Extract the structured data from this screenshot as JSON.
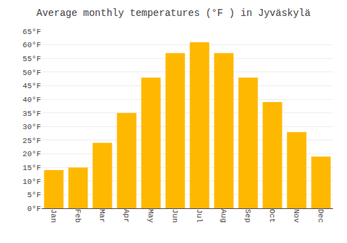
{
  "chart_data": {
    "type": "bar",
    "title": "Average monthly temperatures (°F ) in Jyväskylä",
    "categories": [
      "Jan",
      "Feb",
      "Mar",
      "Apr",
      "May",
      "Jun",
      "Jul",
      "Aug",
      "Sep",
      "Oct",
      "Nov",
      "Dec"
    ],
    "values": [
      14,
      15,
      24,
      35,
      48,
      57,
      61,
      57,
      48,
      39,
      28,
      19
    ],
    "color": "#FFB800",
    "ylim": [
      0,
      65
    ],
    "yticks": [
      {
        "value": 0,
        "label": "0°F"
      },
      {
        "value": 5,
        "label": "5°F"
      },
      {
        "value": 10,
        "label": "10°F"
      },
      {
        "value": 15,
        "label": "15°F"
      },
      {
        "value": 20,
        "label": "20°F"
      },
      {
        "value": 25,
        "label": "25°F"
      },
      {
        "value": 30,
        "label": "30°F"
      },
      {
        "value": 35,
        "label": "35°F"
      },
      {
        "value": 40,
        "label": "40°F"
      },
      {
        "value": 45,
        "label": "45°F"
      },
      {
        "value": 50,
        "label": "50°F"
      },
      {
        "value": 55,
        "label": "55°F"
      },
      {
        "value": 60,
        "label": "60°F"
      },
      {
        "value": 65,
        "label": "65°F"
      }
    ],
    "grid": true
  }
}
